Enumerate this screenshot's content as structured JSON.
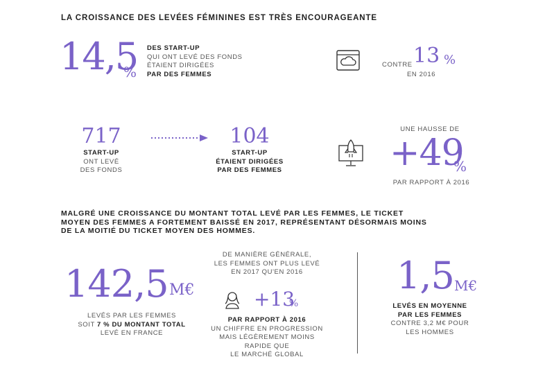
{
  "heading1": "LA CROISSANCE DES LEVÉES FÉMININES EST TRÈS ENCOURAGEANTE",
  "stat1": {
    "value": "14,5",
    "unit": "%",
    "line1": "DES START-UP",
    "line2": "QUI ONT LEVÉ DES FONDS",
    "line3": "ÉTAIENT DIRIGÉES",
    "line4": "PAR DES FEMMES"
  },
  "stat2": {
    "prefix": "CONTRE",
    "value": "13",
    "unit": "%",
    "suffix": "EN 2016",
    "icon": "cloud-browser-icon"
  },
  "flow": {
    "left_value": "717",
    "left_line1": "START-UP",
    "left_line2": "ONT LEVÉ",
    "left_line3": "DES FONDS",
    "right_value": "104",
    "right_line1": "START-UP",
    "right_line2": "ÉTAIENT DIRIGÉES",
    "right_line3": "PAR DES FEMMES",
    "arrow_icon": "dotted-arrow-icon"
  },
  "stat3": {
    "intro": "UNE HAUSSE DE",
    "value": "+49",
    "unit": "%",
    "suffix": "PAR RAPPORT À 2016",
    "icon": "rocket-monitor-icon"
  },
  "heading2": {
    "line1": "MALGRÉ UNE CROISSANCE DU MONTANT TOTAL LEVÉ PAR LES FEMMES, LE TICKET",
    "line2": "MOYEN DES FEMMES A FORTEMENT BAISSÉ EN 2017, REPRÉSENTANT DÉSORMAIS MOINS",
    "line3": "DE LA MOITIÉ DU TICKET MOYEN DES HOMMES."
  },
  "stat4": {
    "value": "142,5",
    "unit": "M€",
    "line1": "LEVÉS PAR LES FEMMES",
    "line2_pre": "SOIT",
    "line2_bold": "7 % DU MONTANT TOTAL",
    "line3": "LEVÉ EN FRANCE"
  },
  "stat5": {
    "line1": "DE MANIÈRE GÉNÉRALE,",
    "line2": "LES FEMMES ONT PLUS LEVÉ",
    "line3": "EN 2017 QU'EN 2016",
    "value": "+13",
    "unit": "%",
    "bold": "PAR RAPPORT À 2016",
    "line4": "UN CHIFFRE EN PROGRESSION",
    "line5": "MAIS LÉGÈREMENT MOINS",
    "line6": "RAPIDE QUE",
    "line7": "LE MARCHÉ GLOBAL",
    "icon": "woman-icon"
  },
  "stat6": {
    "value": "1,5",
    "unit": "M€",
    "bold1": "LEVÉS EN MOYENNE",
    "bold2": "PAR LES FEMMES",
    "line1": "CONTRE 3,2 M€ POUR",
    "line2": "LES HOMMES"
  },
  "colors": {
    "accent": "#7a62c8",
    "text": "#222222"
  }
}
